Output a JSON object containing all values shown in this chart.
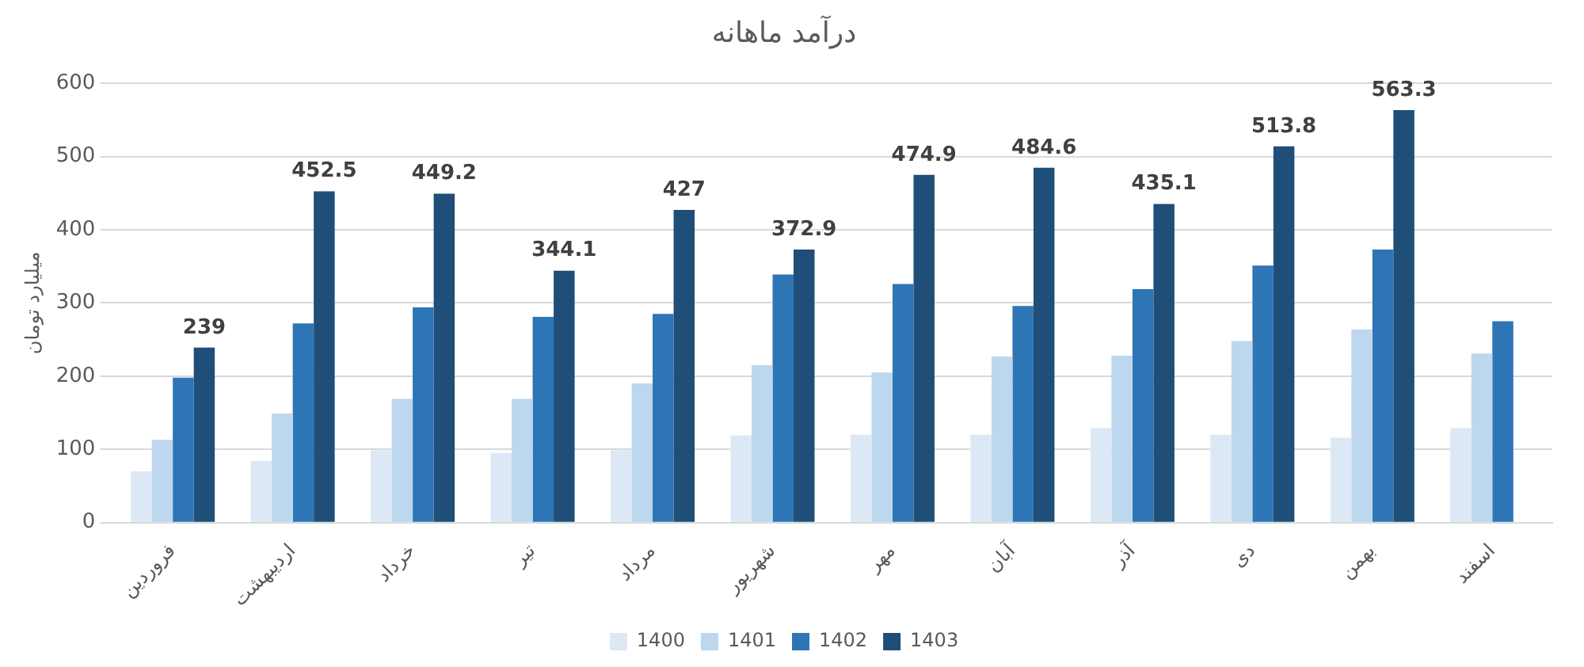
{
  "chart_data": {
    "type": "bar",
    "title": "درآمد ماهانه",
    "ylabel": "میلیارد تومان",
    "categories": [
      "فروردین",
      "اردیبهشت",
      "خرداد",
      "تیر",
      "مرداد",
      "شهریور",
      "مهر",
      "آبان",
      "آذر",
      "دی",
      "بهمن",
      "اسفند"
    ],
    "series": [
      {
        "name": "1400",
        "color": "#dde8f6",
        "values": [
          70,
          84,
          99,
          95,
          99,
          119,
          120,
          120,
          129,
          120,
          116,
          129
        ]
      },
      {
        "name": "1401",
        "color": "#bdd7ee",
        "values": [
          113,
          149,
          169,
          169,
          190,
          215,
          205,
          227,
          228,
          248,
          264,
          231
        ]
      },
      {
        "name": "1402",
        "color": "#2e75b6",
        "values": [
          198,
          272,
          294,
          281,
          285,
          339,
          326,
          296,
          319,
          351,
          373,
          275
        ]
      },
      {
        "name": "1403",
        "color": "#1f4e79",
        "values": [
          239,
          452.5,
          449.2,
          344.1,
          427,
          372.9,
          474.9,
          484.6,
          435.1,
          513.8,
          563.3,
          null
        ],
        "value_labels": [
          "239",
          "452.5",
          "449.2",
          "344.1",
          "427",
          "372.9",
          "474.9",
          "484.6",
          "435.1",
          "513.8",
          "563.3",
          null
        ]
      }
    ],
    "ylim": [
      0,
      600
    ],
    "yticks": [
      0,
      100,
      200,
      300,
      400,
      500,
      600
    ],
    "grid": "y",
    "legend": "bottom"
  }
}
